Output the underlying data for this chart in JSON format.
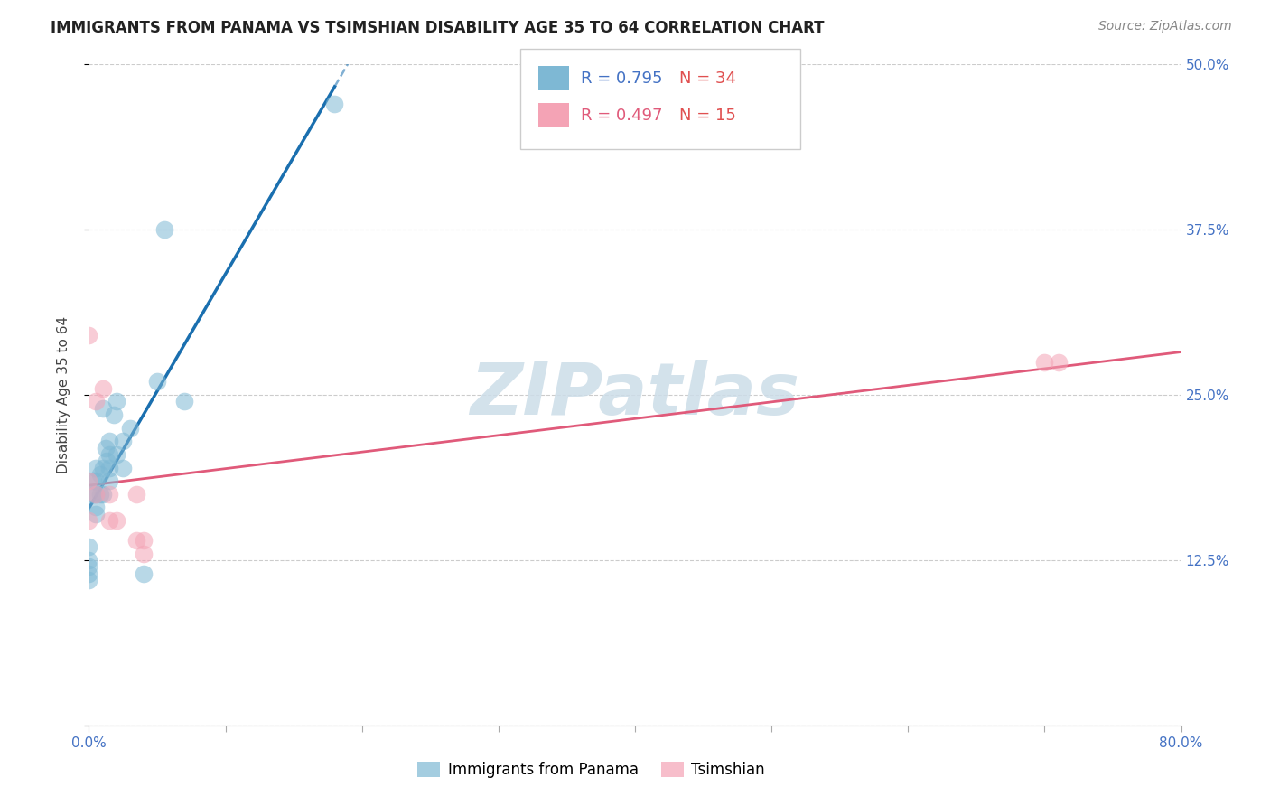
{
  "title": "IMMIGRANTS FROM PANAMA VS TSIMSHIAN DISABILITY AGE 35 TO 64 CORRELATION CHART",
  "source": "Source: ZipAtlas.com",
  "ylabel": "Disability Age 35 to 64",
  "xlim": [
    0.0,
    0.8
  ],
  "ylim": [
    0.0,
    0.5
  ],
  "xtick_positions": [
    0.0,
    0.1,
    0.2,
    0.3,
    0.4,
    0.5,
    0.6,
    0.7,
    0.8
  ],
  "xticklabels": [
    "0.0%",
    "",
    "",
    "",
    "",
    "",
    "",
    "",
    "80.0%"
  ],
  "ytick_positions": [
    0.0,
    0.125,
    0.25,
    0.375,
    0.5
  ],
  "yticklabels": [
    "",
    "12.5%",
    "25.0%",
    "37.5%",
    "50.0%"
  ],
  "blue_color": "#7eb8d4",
  "pink_color": "#f4a3b5",
  "line_blue": "#1a6faf",
  "line_pink": "#e05a7a",
  "watermark": "ZIPatlas",
  "watermark_color": "#ccdde8",
  "panama_x": [
    0.0,
    0.0,
    0.0,
    0.0,
    0.0,
    0.003,
    0.003,
    0.005,
    0.005,
    0.005,
    0.005,
    0.005,
    0.008,
    0.008,
    0.01,
    0.01,
    0.01,
    0.012,
    0.013,
    0.015,
    0.015,
    0.015,
    0.015,
    0.018,
    0.02,
    0.02,
    0.025,
    0.025,
    0.03,
    0.04,
    0.05,
    0.055,
    0.07,
    0.18
  ],
  "panama_y": [
    0.135,
    0.125,
    0.12,
    0.115,
    0.11,
    0.185,
    0.175,
    0.195,
    0.185,
    0.175,
    0.165,
    0.16,
    0.19,
    0.175,
    0.24,
    0.195,
    0.175,
    0.21,
    0.2,
    0.215,
    0.205,
    0.195,
    0.185,
    0.235,
    0.245,
    0.205,
    0.215,
    0.195,
    0.225,
    0.115,
    0.26,
    0.375,
    0.245,
    0.47
  ],
  "tsimshian_x": [
    0.0,
    0.0,
    0.0,
    0.005,
    0.005,
    0.01,
    0.015,
    0.015,
    0.02,
    0.035,
    0.035,
    0.04,
    0.04,
    0.7,
    0.71
  ],
  "tsimshian_y": [
    0.295,
    0.185,
    0.155,
    0.245,
    0.175,
    0.255,
    0.175,
    0.155,
    0.155,
    0.175,
    0.14,
    0.14,
    0.13,
    0.275,
    0.275
  ]
}
